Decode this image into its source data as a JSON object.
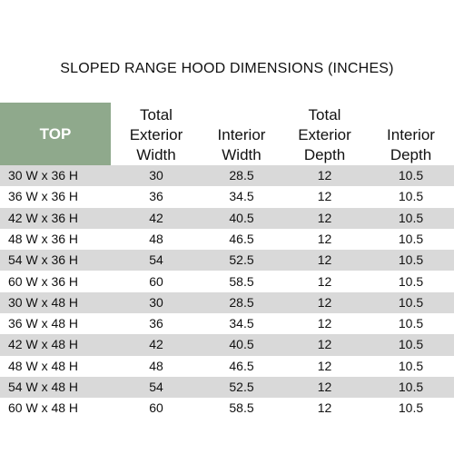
{
  "title": "SLOPED RANGE HOOD DIMENSIONS (INCHES)",
  "table": {
    "corner": "TOP",
    "headers": [
      [
        "Total",
        "Exterior",
        "Width"
      ],
      [
        "Interior",
        "Width"
      ],
      [
        "Total",
        "Exterior",
        "Depth"
      ],
      [
        "Interior",
        "Depth"
      ]
    ],
    "rows": [
      [
        "30 W x 36 H",
        30,
        28.5,
        12,
        10.5
      ],
      [
        "36 W x 36 H",
        36,
        34.5,
        12,
        10.5
      ],
      [
        "42 W x 36 H",
        42,
        40.5,
        12,
        10.5
      ],
      [
        "48 W x 36 H",
        48,
        46.5,
        12,
        10.5
      ],
      [
        "54 W x 36 H",
        54,
        52.5,
        12,
        10.5
      ],
      [
        "60 W x 36 H",
        60,
        58.5,
        12,
        10.5
      ],
      [
        "30 W x 48 H",
        30,
        28.5,
        12,
        10.5
      ],
      [
        "36 W x 48 H",
        36,
        34.5,
        12,
        10.5
      ],
      [
        "42 W x 48 H",
        42,
        40.5,
        12,
        10.5
      ],
      [
        "48 W x 48 H",
        48,
        46.5,
        12,
        10.5
      ],
      [
        "54 W x 48 H",
        54,
        52.5,
        12,
        10.5
      ],
      [
        "60 W x 48 H",
        60,
        58.5,
        12,
        10.5
      ]
    ]
  }
}
